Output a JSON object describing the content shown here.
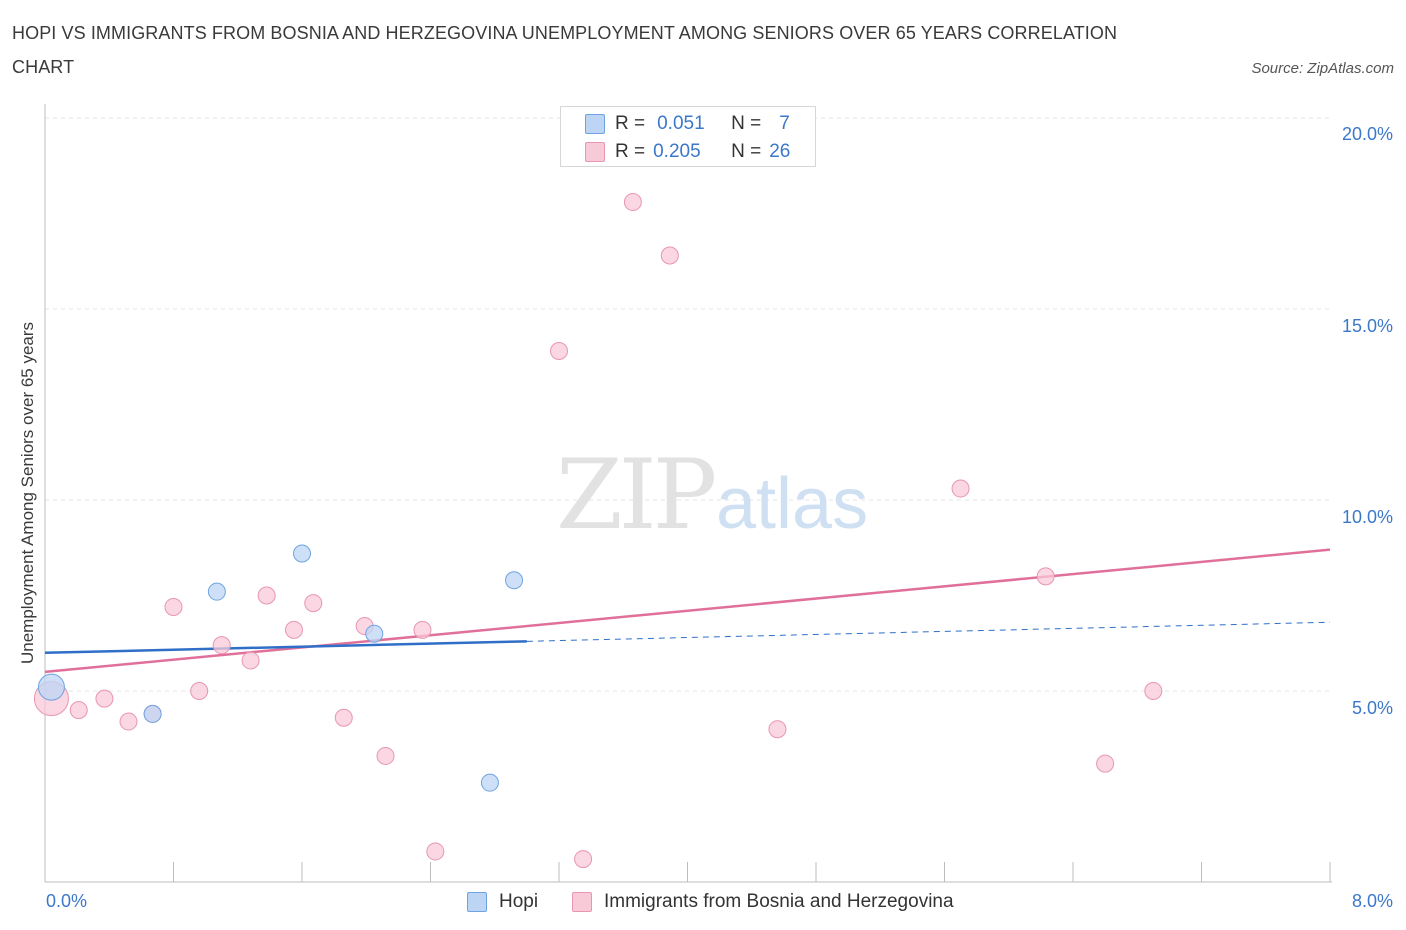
{
  "title": "HOPI VS IMMIGRANTS FROM BOSNIA AND HERZEGOVINA UNEMPLOYMENT AMONG SENIORS OVER 65 YEARS CORRELATION CHART",
  "source": "Source: ZipAtlas.com",
  "watermark": {
    "zip": "ZIP",
    "atlas": "atlas"
  },
  "legend": {
    "r_label": "R =",
    "n_label": "N =",
    "hopi": {
      "r": "0.051",
      "n": "7"
    },
    "bosnia": {
      "r": "0.205",
      "n": "26"
    }
  },
  "chart_data": {
    "type": "scatter",
    "title": "HOPI VS IMMIGRANTS FROM BOSNIA AND HERZEGOVINA UNEMPLOYMENT AMONG SENIORS OVER 65 YEARS CORRELATION CHART",
    "xlabel": "",
    "ylabel": "Unemployment Among Seniors over 65 years",
    "xlim": [
      0,
      8
    ],
    "ylim": [
      0,
      20
    ],
    "x_tick_labels": [
      "0.0%",
      "8.0%"
    ],
    "y_ticks": [
      5,
      10,
      15,
      20
    ],
    "y_tick_labels": [
      "5.0%",
      "10.0%",
      "15.0%",
      "20.0%"
    ],
    "grid": true,
    "legend_position": "top-center",
    "colors": {
      "hopi": "#6fa3e0",
      "hopi_fill": "#bdd5f4",
      "hopi_line": "#2f6fc8",
      "bosnia": "#e896b2",
      "bosnia_fill": "#f8cad8",
      "bosnia_line": "#e0709a"
    },
    "series": [
      {
        "name": "Hopi",
        "points": [
          [
            0.04,
            5.1
          ],
          [
            0.67,
            4.4
          ],
          [
            1.07,
            7.6
          ],
          [
            1.6,
            8.6
          ],
          [
            2.05,
            6.5
          ],
          [
            2.77,
            2.6
          ],
          [
            2.92,
            7.9
          ]
        ],
        "trend": {
          "x0": 0.0,
          "y0": 6.0,
          "x1": 3.0,
          "y1": 6.3,
          "x_ext": 8.0,
          "y_ext": 6.8
        }
      },
      {
        "name": "Immigrants from Bosnia and Herzegovina",
        "points": [
          [
            0.04,
            4.8
          ],
          [
            0.21,
            4.5
          ],
          [
            0.37,
            4.8
          ],
          [
            0.52,
            4.2
          ],
          [
            0.67,
            4.4
          ],
          [
            0.8,
            7.2
          ],
          [
            0.96,
            5.0
          ],
          [
            1.1,
            6.2
          ],
          [
            1.28,
            5.8
          ],
          [
            1.38,
            7.5
          ],
          [
            1.55,
            6.6
          ],
          [
            1.67,
            7.3
          ],
          [
            1.86,
            4.3
          ],
          [
            1.99,
            6.7
          ],
          [
            2.12,
            3.3
          ],
          [
            2.35,
            6.6
          ],
          [
            2.43,
            0.8
          ],
          [
            3.2,
            13.9
          ],
          [
            3.35,
            0.6
          ],
          [
            3.66,
            17.8
          ],
          [
            3.89,
            16.4
          ],
          [
            4.56,
            4.0
          ],
          [
            5.7,
            10.3
          ],
          [
            6.23,
            8.0
          ],
          [
            6.6,
            3.1
          ],
          [
            6.9,
            5.0
          ]
        ],
        "trend": {
          "x0": 0.0,
          "y0": 5.5,
          "x1": 8.0,
          "y1": 8.7
        }
      }
    ]
  },
  "bottom_legend": {
    "hopi": "Hopi",
    "bosnia": "Immigrants from Bosnia and Herzegovina"
  }
}
